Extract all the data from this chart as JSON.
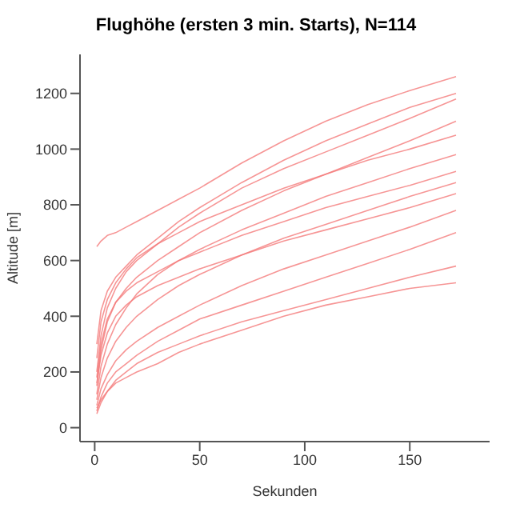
{
  "chart_data": {
    "type": "line",
    "title": "Flughöhe (ersten 3 min. Starts), N=114",
    "xlabel": "Sekunden",
    "ylabel": "Altitude [m]",
    "x": [
      1,
      3,
      6,
      10,
      15,
      20,
      30,
      40,
      50,
      70,
      90,
      110,
      130,
      150,
      172
    ],
    "xlim": [
      -7,
      188
    ],
    "xticks": [
      0,
      50,
      100,
      150
    ],
    "ylim": [
      -50,
      1340
    ],
    "yticks": [
      0,
      200,
      400,
      600,
      800,
      1000,
      1200
    ],
    "grid": false,
    "legend": false,
    "marker": "none",
    "line_style": "solid",
    "series": [
      {
        "color": "#f47a7a",
        "values": [
          650,
          670,
          690,
          700,
          720,
          740,
          780,
          820,
          860,
          950,
          1030,
          1100,
          1160,
          1210,
          1260
        ]
      },
      {
        "color": "#f47a7a",
        "values": [
          200,
          330,
          430,
          500,
          560,
          600,
          660,
          720,
          770,
          860,
          930,
          990,
          1050,
          1110,
          1180
        ]
      },
      {
        "color": "#f47a7a",
        "values": [
          150,
          280,
          380,
          450,
          500,
          540,
          600,
          650,
          700,
          780,
          850,
          910,
          970,
          1030,
          1100
        ]
      },
      {
        "color": "#f47a7a",
        "values": [
          250,
          380,
          460,
          520,
          570,
          610,
          660,
          700,
          740,
          800,
          860,
          910,
          960,
          1000,
          1050
        ]
      },
      {
        "color": "#f47a7a",
        "values": [
          120,
          220,
          300,
          370,
          430,
          480,
          550,
          600,
          640,
          710,
          770,
          830,
          880,
          930,
          980
        ]
      },
      {
        "color": "#f47a7a",
        "values": [
          180,
          300,
          390,
          450,
          490,
          520,
          560,
          600,
          630,
          690,
          740,
          790,
          830,
          870,
          920
        ]
      },
      {
        "color": "#f47a7a",
        "values": [
          100,
          180,
          250,
          310,
          360,
          400,
          460,
          510,
          550,
          620,
          680,
          730,
          780,
          830,
          880
        ]
      },
      {
        "color": "#f47a7a",
        "values": [
          160,
          260,
          340,
          400,
          440,
          470,
          510,
          540,
          570,
          620,
          670,
          710,
          750,
          790,
          840
        ]
      },
      {
        "color": "#f47a7a",
        "values": [
          80,
          140,
          190,
          240,
          280,
          310,
          360,
          400,
          440,
          510,
          570,
          620,
          670,
          720,
          780
        ]
      },
      {
        "color": "#f47a7a",
        "values": [
          60,
          110,
          160,
          200,
          230,
          260,
          310,
          350,
          390,
          440,
          490,
          540,
          590,
          640,
          700
        ]
      },
      {
        "color": "#f47a7a",
        "values": [
          50,
          90,
          130,
          170,
          200,
          230,
          270,
          300,
          330,
          380,
          420,
          460,
          500,
          540,
          580
        ]
      },
      {
        "color": "#f47a7a",
        "values": [
          70,
          100,
          130,
          160,
          180,
          200,
          230,
          270,
          300,
          350,
          400,
          440,
          470,
          500,
          520
        ]
      },
      {
        "color": "#f47a7a",
        "values": [
          300,
          420,
          490,
          540,
          580,
          620,
          680,
          740,
          790,
          880,
          960,
          1030,
          1090,
          1150,
          1200
        ]
      }
    ]
  }
}
